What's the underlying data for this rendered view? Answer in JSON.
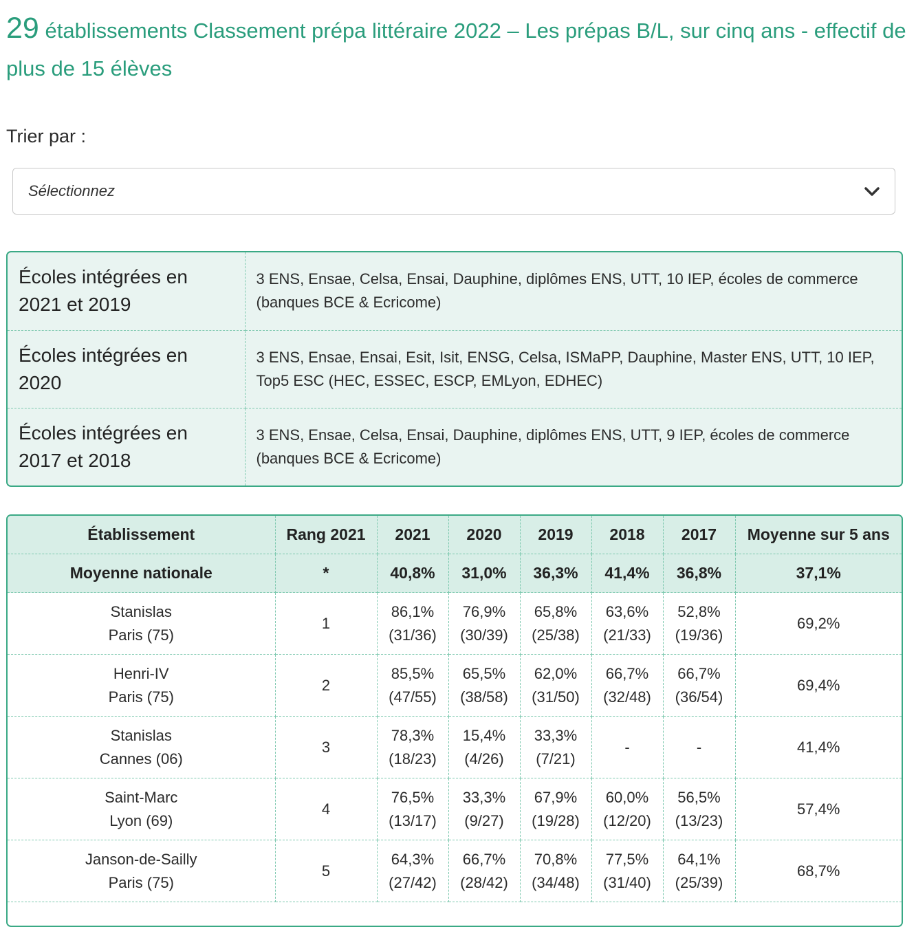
{
  "heading": {
    "count": "29",
    "text": "établissements Classement prépa littéraire 2022 – Les prépas B/L, sur cinq ans - effectif de plus de 15 élèves"
  },
  "sort": {
    "label": "Trier par :",
    "selected": "Sélectionnez"
  },
  "colors": {
    "accent": "#2a9d7c",
    "border": "#3aa985",
    "header_bg": "#d8eee7",
    "info_bg": "#e9f4f1"
  },
  "schools_info": [
    {
      "label": "Écoles intégrées en 2021 et 2019",
      "value": "3 ENS, Ensae, Celsa, Ensai, Dauphine, diplômes ENS, UTT, 10 IEP, écoles de commerce (banques BCE & Ecricome)"
    },
    {
      "label": "Écoles intégrées en 2020",
      "value": "3 ENS, Ensae, Ensai, Esit, Isit, ENSG, Celsa, ISMaPP, Dauphine, Master ENS, UTT, 10 IEP, Top5 ESC (HEC, ESSEC, ESCP, EMLyon, EDHEC)"
    },
    {
      "label": "Écoles intégrées en 2017 et 2018",
      "value": "3 ENS, Ensae, Celsa, Ensai, Dauphine, diplômes ENS, UTT, 9 IEP, écoles de commerce (banques BCE & Ecricome)"
    }
  ],
  "table": {
    "headers": [
      "Établissement",
      "Rang 2021",
      "2021",
      "2020",
      "2019",
      "2018",
      "2017",
      "Moyenne sur 5 ans"
    ],
    "national": [
      "Moyenne nationale",
      "*",
      "40,8%",
      "31,0%",
      "36,3%",
      "41,4%",
      "36,8%",
      "37,1%"
    ],
    "rows": [
      {
        "name": "Stanislas",
        "city": "Paris (75)",
        "rank": "1",
        "years": [
          [
            "86,1%",
            "(31/36)"
          ],
          [
            "76,9%",
            "(30/39)"
          ],
          [
            "65,8%",
            "(25/38)"
          ],
          [
            "63,6%",
            "(21/33)"
          ],
          [
            "52,8%",
            "(19/36)"
          ]
        ],
        "average": "69,2%"
      },
      {
        "name": "Henri-IV",
        "city": "Paris (75)",
        "rank": "2",
        "years": [
          [
            "85,5%",
            "(47/55)"
          ],
          [
            "65,5%",
            "(38/58)"
          ],
          [
            "62,0%",
            "(31/50)"
          ],
          [
            "66,7%",
            "(32/48)"
          ],
          [
            "66,7%",
            "(36/54)"
          ]
        ],
        "average": "69,4%"
      },
      {
        "name": "Stanislas",
        "city": "Cannes (06)",
        "rank": "3",
        "years": [
          [
            "78,3%",
            "(18/23)"
          ],
          [
            "15,4%",
            "(4/26)"
          ],
          [
            "33,3%",
            "(7/21)"
          ],
          [
            "-",
            ""
          ],
          [
            "-",
            ""
          ]
        ],
        "average": "41,4%"
      },
      {
        "name": "Saint-Marc",
        "city": "Lyon (69)",
        "rank": "4",
        "years": [
          [
            "76,5%",
            "(13/17)"
          ],
          [
            "33,3%",
            "(9/27)"
          ],
          [
            "67,9%",
            "(19/28)"
          ],
          [
            "60,0%",
            "(12/20)"
          ],
          [
            "56,5%",
            "(13/23)"
          ]
        ],
        "average": "57,4%"
      },
      {
        "name": "Janson-de-Sailly",
        "city": "Paris (75)",
        "rank": "5",
        "years": [
          [
            "64,3%",
            "(27/42)"
          ],
          [
            "66,7%",
            "(28/42)"
          ],
          [
            "70,8%",
            "(34/48)"
          ],
          [
            "77,5%",
            "(31/40)"
          ],
          [
            "64,1%",
            "(25/39)"
          ]
        ],
        "average": "68,7%"
      }
    ]
  }
}
